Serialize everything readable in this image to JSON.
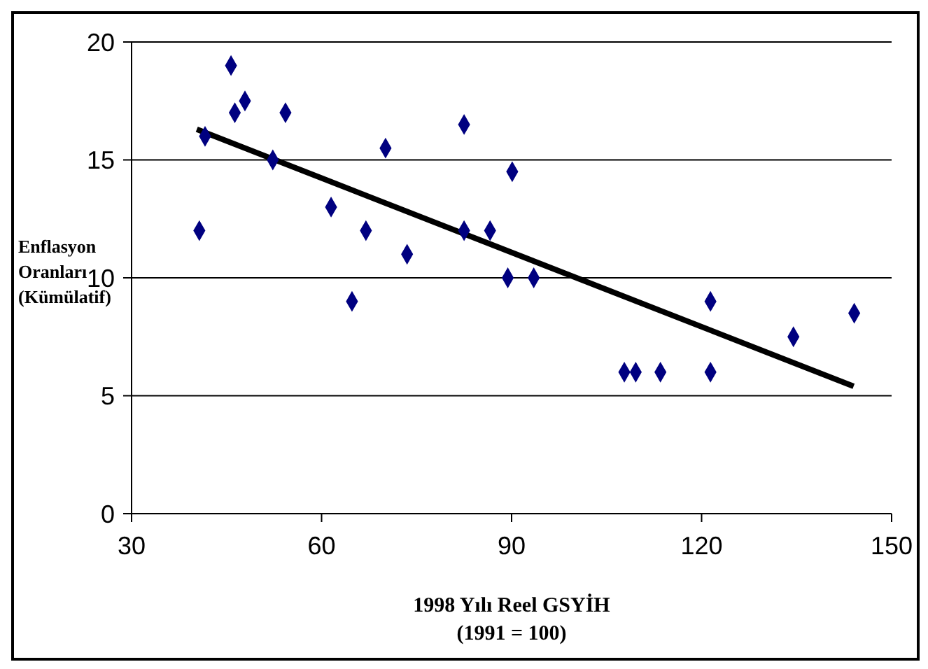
{
  "chart_data": {
    "type": "scatter",
    "xlabel": "1998 Yılı Reel GSYİH (1991 = 100)",
    "ylabel": "Enflasyon Oranları (Kümülatif)",
    "xlim": [
      30,
      150
    ],
    "xticks": [
      30,
      60,
      90,
      120,
      150
    ],
    "ylim": [
      0,
      20
    ],
    "yticks": [
      0,
      5,
      10,
      15,
      20
    ],
    "grid": "y",
    "series": [
      {
        "marker": "diamond",
        "color": "#000080",
        "x": [
          40.7,
          41.6,
          45.7,
          46.3,
          47.9,
          52.3,
          54.3,
          61.5,
          64.8,
          67.0,
          70.1,
          73.5,
          82.5,
          82.5,
          86.6,
          90.1,
          89.4,
          93.5,
          107.8,
          109.6,
          113.5,
          121.4,
          121.4,
          134.5,
          144.1
        ],
        "values": [
          12,
          16,
          19,
          17,
          17.5,
          15,
          17,
          13,
          9,
          12,
          15.5,
          11,
          16.5,
          12,
          12,
          14.5,
          10,
          10,
          6,
          6,
          6,
          6,
          9,
          7.5,
          8.5
        ]
      },
      {
        "type": "line",
        "marker": "none",
        "color": "#000000",
        "x": [
          40.3,
          144
        ],
        "values": [
          16.3,
          5.4
        ]
      }
    ]
  }
}
